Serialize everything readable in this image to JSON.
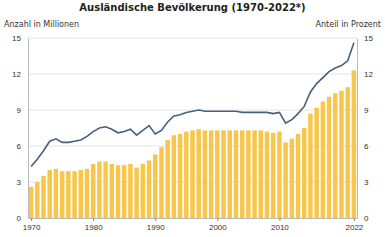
{
  "chart_data": {
    "type": "bar",
    "title": "Ausländische Bevölkerung (1970-2022*)",
    "y_label": "Anzahl in Millionen",
    "y2_label": "Anteil in Prozent",
    "x": [
      1970,
      1971,
      1972,
      1973,
      1974,
      1975,
      1976,
      1977,
      1978,
      1979,
      1980,
      1981,
      1982,
      1983,
      1984,
      1985,
      1986,
      1987,
      1988,
      1989,
      1990,
      1991,
      1992,
      1993,
      1994,
      1995,
      1996,
      1997,
      1998,
      1999,
      2000,
      2001,
      2002,
      2003,
      2004,
      2005,
      2006,
      2007,
      2008,
      2009,
      2010,
      2011,
      2012,
      2013,
      2014,
      2015,
      2016,
      2017,
      2018,
      2019,
      2020,
      2021,
      2022
    ],
    "xlim": [
      1969.5,
      2022.5
    ],
    "xticks": [
      1970,
      1980,
      1990,
      2000,
      2010,
      2022
    ],
    "ylim": [
      0,
      15
    ],
    "yticks": [
      0,
      3,
      6,
      9,
      12,
      15
    ],
    "y2lim": [
      0,
      15
    ],
    "y2ticks": [
      0,
      3,
      6,
      9,
      12,
      15
    ],
    "grid": true,
    "series": [
      {
        "type": "bar",
        "color": "#f7c64b",
        "values": [
          2.6,
          3.0,
          3.5,
          4.0,
          4.1,
          3.9,
          3.9,
          3.9,
          4.0,
          4.1,
          4.5,
          4.7,
          4.7,
          4.5,
          4.4,
          4.4,
          4.5,
          4.2,
          4.5,
          4.8,
          5.3,
          5.9,
          6.5,
          6.9,
          7.0,
          7.2,
          7.3,
          7.4,
          7.3,
          7.3,
          7.3,
          7.3,
          7.3,
          7.3,
          7.3,
          7.3,
          7.3,
          7.3,
          7.2,
          7.1,
          7.2,
          6.3,
          6.6,
          7.0,
          7.5,
          8.7,
          9.2,
          9.7,
          10.1,
          10.4,
          10.6,
          10.9,
          12.3
        ]
      },
      {
        "type": "line",
        "color": "#48607a",
        "axis": "y2",
        "values": [
          4.3,
          4.9,
          5.6,
          6.4,
          6.6,
          6.3,
          6.3,
          6.4,
          6.5,
          6.8,
          7.2,
          7.5,
          7.6,
          7.4,
          7.1,
          7.2,
          7.4,
          6.9,
          7.3,
          7.7,
          7.0,
          7.3,
          8.0,
          8.5,
          8.6,
          8.8,
          8.9,
          9.0,
          8.9,
          8.9,
          8.9,
          8.9,
          8.9,
          8.9,
          8.8,
          8.8,
          8.8,
          8.8,
          8.8,
          8.7,
          8.8,
          7.9,
          8.2,
          8.7,
          9.3,
          10.5,
          11.2,
          11.7,
          12.2,
          12.5,
          12.7,
          13.1,
          14.6
        ]
      }
    ]
  }
}
